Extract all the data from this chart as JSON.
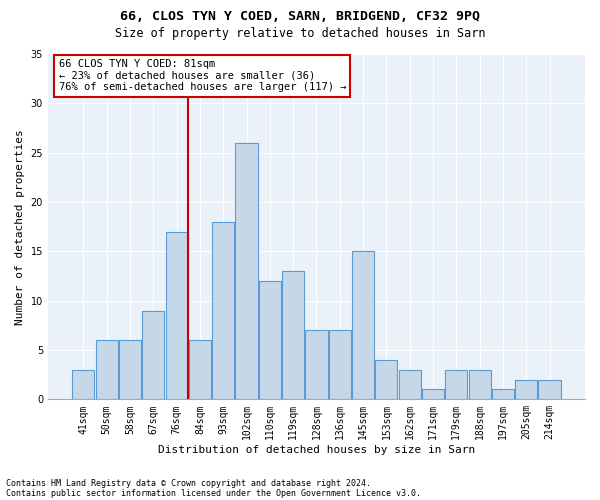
{
  "title": "66, CLOS TYN Y COED, SARN, BRIDGEND, CF32 9PQ",
  "subtitle": "Size of property relative to detached houses in Sarn",
  "xlabel": "Distribution of detached houses by size in Sarn",
  "ylabel": "Number of detached properties",
  "bar_labels": [
    "41sqm",
    "50sqm",
    "58sqm",
    "67sqm",
    "76sqm",
    "84sqm",
    "93sqm",
    "102sqm",
    "110sqm",
    "119sqm",
    "128sqm",
    "136sqm",
    "145sqm",
    "153sqm",
    "162sqm",
    "171sqm",
    "179sqm",
    "188sqm",
    "197sqm",
    "205sqm",
    "214sqm"
  ],
  "bar_values": [
    3,
    6,
    6,
    9,
    17,
    6,
    18,
    26,
    12,
    13,
    7,
    7,
    15,
    4,
    3,
    1,
    3,
    3,
    1,
    2,
    2
  ],
  "bar_color": "#c5d8e8",
  "bar_edgecolor": "#5b9bd5",
  "annotation_label": "66 CLOS TYN Y COED: 81sqm",
  "annotation_line1": "← 23% of detached houses are smaller (36)",
  "annotation_line2": "76% of semi-detached houses are larger (117) →",
  "vline_color": "#cc0000",
  "vline_x_idx": 4.5,
  "ylim": [
    0,
    35
  ],
  "yticks": [
    0,
    5,
    10,
    15,
    20,
    25,
    30,
    35
  ],
  "footer_line1": "Contains HM Land Registry data © Crown copyright and database right 2024.",
  "footer_line2": "Contains public sector information licensed under the Open Government Licence v3.0.",
  "bg_color": "#eaf1f8",
  "grid_color": "#ffffff",
  "title_fontsize": 9.5,
  "subtitle_fontsize": 8.5,
  "axis_label_fontsize": 8,
  "tick_fontsize": 7,
  "annotation_fontsize": 7.5,
  "footer_fontsize": 6
}
